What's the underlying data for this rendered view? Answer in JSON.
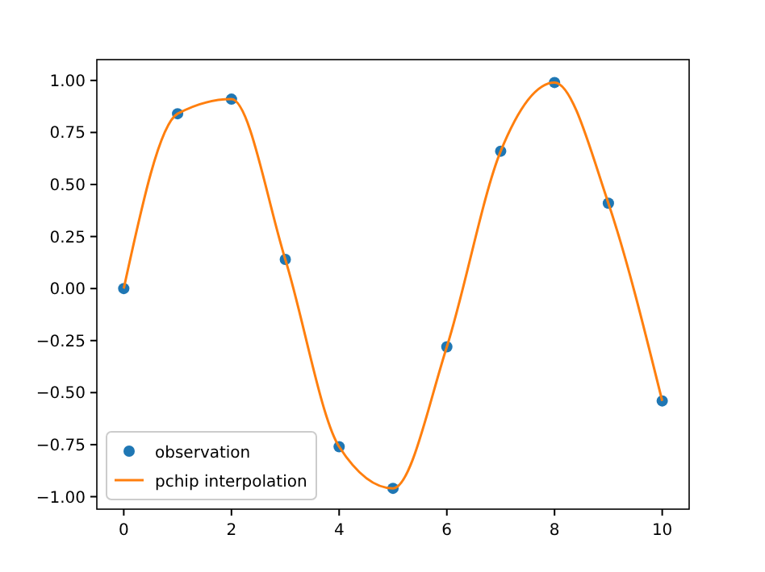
{
  "chart_data": {
    "type": "scatter",
    "x": [
      0,
      1,
      2,
      3,
      4,
      5,
      6,
      7,
      8,
      9,
      10
    ],
    "series": [
      {
        "name": "observation",
        "color": "#1f77b4",
        "marker": "circle",
        "values": [
          0,
          0.84,
          0.91,
          0.14,
          -0.76,
          -0.96,
          -0.28,
          0.66,
          0.99,
          0.41,
          -0.54
        ]
      },
      {
        "name": "pchip interpolation",
        "type": "line",
        "color": "#ff7f0e",
        "marker": "none",
        "line_style": "solid",
        "values": [
          0,
          0.84,
          0.91,
          0.14,
          -0.76,
          -0.96,
          -0.28,
          0.66,
          0.99,
          0.41,
          -0.54
        ]
      }
    ],
    "xlim": [
      -0.5,
      10.5
    ],
    "xticks": [
      0,
      2,
      4,
      6,
      8,
      10
    ],
    "ylim": [
      -1.06,
      1.1
    ],
    "yticks": [
      {
        "value": -1,
        "label": "−1.00"
      },
      {
        "value": -0.75,
        "label": "−0.75"
      },
      {
        "value": -0.5,
        "label": "−0.50"
      },
      {
        "value": -0.25,
        "label": "−0.25"
      },
      {
        "value": 0,
        "label": "0.00"
      },
      {
        "value": 0.25,
        "label": "0.25"
      },
      {
        "value": 0.5,
        "label": "0.50"
      },
      {
        "value": 0.75,
        "label": "0.75"
      },
      {
        "value": 1,
        "label": "1.00"
      }
    ],
    "grid": false,
    "legend": "bottom left"
  }
}
